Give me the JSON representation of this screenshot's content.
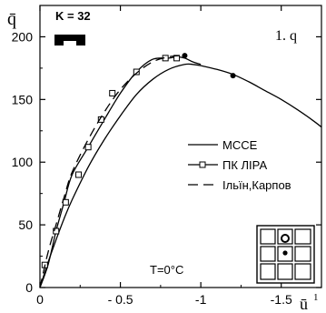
{
  "chart_data": {
    "type": "line",
    "x_axis": {
      "label": "ū",
      "label_sup": "1",
      "range": [
        0,
        -1.75
      ],
      "ticks": [
        0,
        -0.5,
        -1,
        -1.5
      ],
      "tick_labels": [
        "0",
        "- 0.5",
        "-1",
        "-1.5"
      ]
    },
    "y_axis": {
      "label": "q̄",
      "range": [
        0,
        225
      ],
      "ticks": [
        0,
        50,
        100,
        150,
        200
      ],
      "tick_labels": [
        "0",
        "50",
        "100",
        "150",
        "200"
      ]
    },
    "grid": false,
    "annotations": {
      "k_label": "K = 32",
      "plot_id": "1. q",
      "temperature": "T=0°C"
    },
    "legend": {
      "placement": "right",
      "entries": [
        "МССЕ",
        "ПК ЛІРА",
        "Ільїн,Карпов"
      ]
    },
    "series": [
      {
        "name": "МССЕ",
        "style": "solid",
        "x": [
          0,
          -0.05,
          -0.1,
          -0.15,
          -0.2,
          -0.3,
          -0.4,
          -0.5,
          -0.6,
          -0.7,
          -0.8,
          -0.9,
          -0.95,
          -1.0,
          -1.1,
          -1.2,
          -1.3,
          -1.4,
          -1.5,
          -1.6,
          -1.7,
          -1.75
        ],
        "y": [
          0,
          20,
          38,
          55,
          70,
          96,
          118,
          137,
          154,
          166,
          174,
          178,
          178,
          177,
          174,
          170,
          164,
          157,
          150,
          142,
          133,
          128
        ]
      },
      {
        "name": "ПК ЛІРА",
        "style": "solid-square-markers",
        "x": [
          0,
          -0.05,
          -0.1,
          -0.15,
          -0.2,
          -0.3,
          -0.4,
          -0.5,
          -0.6,
          -0.7,
          -0.8,
          -0.85,
          -0.9,
          -0.95,
          -1.0
        ],
        "y": [
          0,
          18,
          45,
          68,
          90,
          112,
          134,
          155,
          172,
          182,
          183,
          184,
          183,
          180,
          178
        ],
        "marker_x": [
          -0.03,
          -0.1,
          -0.16,
          -0.24,
          -0.3,
          -0.38,
          -0.45,
          -0.6,
          -0.78,
          -0.85
        ],
        "marker_y": [
          18,
          45,
          68,
          90,
          112,
          134,
          155,
          172,
          183,
          183
        ]
      },
      {
        "name": "Ільїн,Карпов",
        "style": "dashed",
        "x": [
          0,
          -0.05,
          -0.1,
          -0.15,
          -0.2,
          -0.3,
          -0.4,
          -0.5,
          -0.6,
          -0.7,
          -0.8,
          -0.88
        ],
        "y": [
          0,
          28,
          50,
          72,
          92,
          118,
          140,
          158,
          171,
          180,
          184,
          185
        ]
      }
    ],
    "points": [
      {
        "x": -0.9,
        "y": 185
      },
      {
        "x": -1.2,
        "y": 169
      }
    ]
  }
}
